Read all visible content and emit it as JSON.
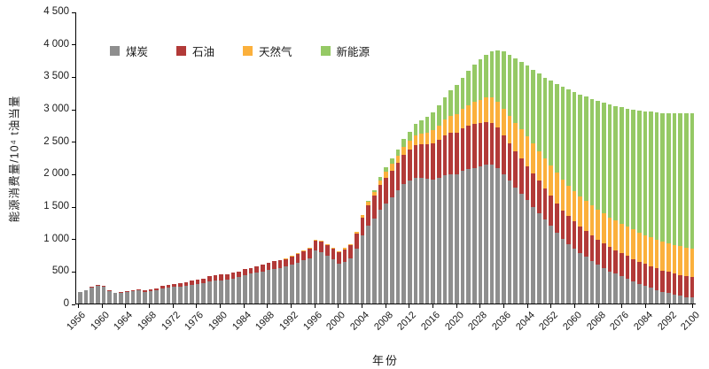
{
  "chart_data": {
    "type": "bar",
    "stacked": true,
    "title": "",
    "ylabel": "能源消费量/10⁴ t油当量",
    "xlabel": "年份",
    "ylim": [
      0,
      4500
    ],
    "grid": false,
    "legend_position": "top-left-inside",
    "yticks": [
      {
        "value": 0,
        "label": "0"
      },
      {
        "value": 500,
        "label": "500"
      },
      {
        "value": 1000,
        "label": "1 000"
      },
      {
        "value": 1500,
        "label": "1 500"
      },
      {
        "value": 2000,
        "label": "2 000"
      },
      {
        "value": 2500,
        "label": "2 500"
      },
      {
        "value": 3000,
        "label": "3 000"
      },
      {
        "value": 3500,
        "label": "3 500"
      },
      {
        "value": 4000,
        "label": "4 000"
      },
      {
        "value": 4500,
        "label": "4 500"
      }
    ],
    "xticks": [
      "1956",
      "1960",
      "1964",
      "1968",
      "1972",
      "1976",
      "1980",
      "1984",
      "1988",
      "1992",
      "1996",
      "2000",
      "2004",
      "2008",
      "2012",
      "2016",
      "2020",
      "2028",
      "2036",
      "2044",
      "2052",
      "2060",
      "2068",
      "2076",
      "2084",
      "2092",
      "2100"
    ],
    "years": [
      1956,
      1957,
      1958,
      1959,
      1960,
      1961,
      1962,
      1963,
      1964,
      1965,
      1966,
      1967,
      1968,
      1969,
      1970,
      1971,
      1972,
      1973,
      1974,
      1975,
      1976,
      1977,
      1978,
      1979,
      1980,
      1981,
      1982,
      1983,
      1984,
      1985,
      1986,
      1987,
      1988,
      1989,
      1990,
      1991,
      1992,
      1993,
      1994,
      1995,
      1996,
      1997,
      1998,
      1999,
      2000,
      2001,
      2002,
      2003,
      2004,
      2005,
      2006,
      2007,
      2008,
      2009,
      2010,
      2011,
      2012,
      2013,
      2014,
      2015,
      2016,
      2017,
      2018,
      2019,
      2020,
      2022,
      2024,
      2026,
      2028,
      2030,
      2032,
      2034,
      2036,
      2038,
      2040,
      2042,
      2044,
      2046,
      2048,
      2050,
      2052,
      2054,
      2056,
      2058,
      2060,
      2062,
      2064,
      2066,
      2068,
      2070,
      2072,
      2074,
      2076,
      2078,
      2080,
      2082,
      2084,
      2086,
      2088,
      2090,
      2092,
      2094,
      2096,
      2098,
      2100
    ],
    "series": [
      {
        "key": "coal",
        "name": "煤炭",
        "color": "#8e8e8e",
        "values": [
          180,
          200,
          250,
          280,
          260,
          190,
          160,
          170,
          180,
          190,
          200,
          185,
          195,
          210,
          230,
          245,
          255,
          265,
          268,
          285,
          295,
          315,
          345,
          355,
          360,
          370,
          390,
          410,
          435,
          460,
          480,
          500,
          525,
          540,
          550,
          570,
          600,
          630,
          665,
          700,
          820,
          800,
          740,
          680,
          620,
          650,
          700,
          850,
          1050,
          1200,
          1320,
          1450,
          1550,
          1650,
          1750,
          1850,
          1900,
          1950,
          1950,
          1930,
          1920,
          1950,
          1980,
          2000,
          2000,
          2050,
          2080,
          2100,
          2120,
          2150,
          2150,
          2100,
          2000,
          1900,
          1800,
          1700,
          1600,
          1500,
          1400,
          1300,
          1200,
          1100,
          1000,
          920,
          850,
          780,
          720,
          660,
          600,
          550,
          500,
          460,
          420,
          380,
          340,
          300,
          270,
          240,
          210,
          180,
          160,
          140,
          120,
          100,
          90
        ]
      },
      {
        "key": "oil",
        "name": "石油",
        "color": "#b23a38",
        "values": [
          5,
          6,
          8,
          10,
          10,
          10,
          10,
          12,
          14,
          16,
          18,
          18,
          20,
          25,
          40,
          45,
          50,
          55,
          60,
          70,
          72,
          75,
          85,
          88,
          90,
          88,
          88,
          90,
          95,
          95,
          100,
          105,
          110,
          112,
          115,
          120,
          130,
          140,
          145,
          150,
          155,
          160,
          160,
          170,
          180,
          190,
          200,
          230,
          280,
          320,
          350,
          380,
          400,
          410,
          430,
          450,
          480,
          500,
          520,
          540,
          560,
          590,
          620,
          640,
          650,
          660,
          670,
          680,
          670,
          660,
          640,
          620,
          600,
          580,
          560,
          545,
          530,
          515,
          500,
          485,
          470,
          455,
          445,
          432,
          420,
          410,
          400,
          390,
          385,
          380,
          372,
          365,
          360,
          355,
          350,
          345,
          340,
          337,
          333,
          330,
          328,
          326,
          324,
          322,
          320
        ]
      },
      {
        "key": "gas",
        "name": "天然气",
        "color": "#fbb03c",
        "values": [
          0,
          0,
          0,
          0,
          0,
          0,
          0,
          0,
          0,
          0,
          0,
          0,
          0,
          0,
          0,
          0,
          0,
          0,
          0,
          0,
          0,
          0,
          0,
          0,
          0,
          0,
          0,
          0,
          0,
          0,
          0,
          0,
          0,
          0,
          5,
          5,
          6,
          6,
          7,
          8,
          8,
          10,
          12,
          13,
          15,
          18,
          20,
          25,
          35,
          50,
          60,
          75,
          90,
          100,
          110,
          120,
          135,
          150,
          160,
          180,
          200,
          220,
          245,
          265,
          280,
          300,
          320,
          340,
          360,
          380,
          400,
          410,
          420,
          430,
          440,
          448,
          455,
          458,
          460,
          462,
          465,
          467,
          468,
          469,
          470,
          470,
          470,
          470,
          468,
          466,
          464,
          462,
          460,
          458,
          456,
          454,
          452,
          450,
          448,
          446,
          444,
          442,
          441,
          440,
          440
        ]
      },
      {
        "key": "new-energy",
        "name": "新能源",
        "color": "#95c965",
        "values": [
          0,
          0,
          0,
          0,
          0,
          0,
          0,
          0,
          0,
          0,
          0,
          0,
          0,
          0,
          0,
          0,
          0,
          0,
          0,
          0,
          0,
          0,
          0,
          0,
          0,
          0,
          0,
          0,
          0,
          0,
          0,
          0,
          0,
          0,
          0,
          0,
          0,
          0,
          0,
          0,
          0,
          0,
          0,
          0,
          0,
          0,
          0,
          0,
          10,
          20,
          30,
          50,
          70,
          85,
          100,
          125,
          150,
          175,
          200,
          240,
          280,
          315,
          350,
          400,
          450,
          490,
          530,
          580,
          630,
          660,
          710,
          790,
          880,
          940,
          1000,
          1047,
          1095,
          1147,
          1200,
          1253,
          1315,
          1378,
          1447,
          1499,
          1540,
          1580,
          1610,
          1650,
          1687,
          1714,
          1744,
          1773,
          1800,
          1827,
          1854,
          1891,
          1918,
          1943,
          1969,
          1994,
          2018,
          2042,
          2065,
          2088,
          2100
        ]
      }
    ]
  }
}
